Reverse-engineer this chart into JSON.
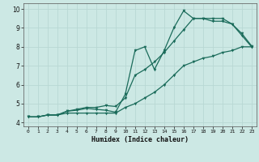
{
  "xlabel": "Humidex (Indice chaleur)",
  "bg_color": "#cce8e4",
  "line_color": "#1a6b5a",
  "grid_color": "#b8d8d4",
  "xlim": [
    -0.5,
    23.5
  ],
  "ylim": [
    3.8,
    10.3
  ],
  "xticks": [
    0,
    1,
    2,
    3,
    4,
    5,
    6,
    7,
    8,
    9,
    10,
    11,
    12,
    13,
    14,
    15,
    16,
    17,
    18,
    19,
    20,
    21,
    22,
    23
  ],
  "yticks": [
    4,
    5,
    6,
    7,
    8,
    9,
    10
  ],
  "line1_x": [
    0,
    1,
    2,
    3,
    4,
    5,
    6,
    7,
    8,
    9,
    10,
    11,
    12,
    13,
    14,
    15,
    16,
    17,
    18,
    19,
    20,
    21,
    22,
    23
  ],
  "line1_y": [
    4.3,
    4.3,
    4.4,
    4.4,
    4.6,
    4.65,
    4.75,
    4.7,
    4.65,
    4.55,
    5.5,
    7.8,
    8.0,
    6.8,
    7.8,
    9.0,
    9.9,
    9.5,
    9.5,
    9.35,
    9.35,
    9.2,
    8.6,
    8.0
  ],
  "line2_x": [
    0,
    1,
    2,
    3,
    4,
    5,
    6,
    7,
    8,
    9,
    10,
    11,
    12,
    13,
    14,
    15,
    16,
    17,
    18,
    19,
    20,
    21,
    22,
    23
  ],
  "line2_y": [
    4.3,
    4.3,
    4.4,
    4.4,
    4.6,
    4.7,
    4.8,
    4.8,
    4.9,
    4.85,
    5.3,
    6.5,
    6.8,
    7.2,
    7.7,
    8.3,
    8.9,
    9.5,
    9.5,
    9.5,
    9.5,
    9.2,
    8.7,
    8.05
  ],
  "line3_x": [
    0,
    1,
    2,
    3,
    4,
    5,
    6,
    7,
    8,
    9,
    10,
    11,
    12,
    13,
    14,
    15,
    16,
    17,
    18,
    19,
    20,
    21,
    22,
    23
  ],
  "line3_y": [
    4.3,
    4.3,
    4.4,
    4.4,
    4.5,
    4.5,
    4.5,
    4.5,
    4.5,
    4.5,
    4.8,
    5.0,
    5.3,
    5.6,
    6.0,
    6.5,
    7.0,
    7.2,
    7.4,
    7.5,
    7.7,
    7.8,
    8.0,
    8.0
  ]
}
